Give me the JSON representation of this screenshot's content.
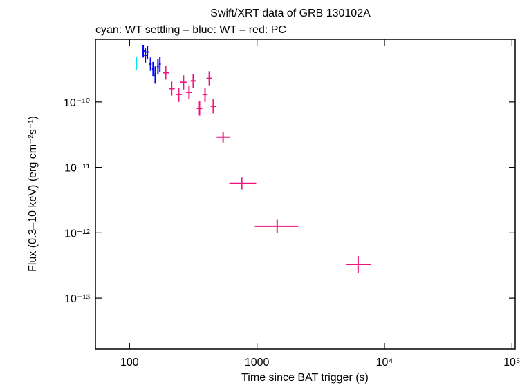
{
  "chart_data": {
    "type": "errorbar-scatter",
    "title": "Swift/XRT data of GRB 130102A",
    "subtitle": "cyan: WT settling – blue: WT – red: PC",
    "xlabel": "Time since BAT trigger (s)",
    "ylabel": "Flux (0.3–10 keV) (erg cm⁻²s⁻¹)",
    "xscale": "log",
    "yscale": "log",
    "xlim": [
      54,
      106000
    ],
    "ylim": [
      1.66e-14,
      9.1e-10
    ],
    "xticks": [
      100,
      1000,
      {
        "value": 10000,
        "label": "10⁴"
      },
      {
        "value": 100000,
        "label": "10⁵"
      }
    ],
    "yticks": [
      {
        "value": 1e-13,
        "label": "10⁻¹³"
      },
      {
        "value": 1e-12,
        "label": "10⁻¹²"
      },
      {
        "value": 1e-11,
        "label": "10⁻¹¹"
      },
      {
        "value": 1e-10,
        "label": "10⁻¹⁰"
      }
    ],
    "series": [
      {
        "color": "#00e5ee",
        "x": [
          113
        ],
        "xerr": [
          [
            2,
            2
          ]
        ],
        "values": [
          3.9e-10
        ],
        "yerr": [
          [
            8e-11,
            1e-10
          ]
        ]
      },
      {
        "color": "#0000ff",
        "x": [
          128,
          133,
          138,
          146,
          153,
          159,
          167,
          173
        ],
        "xerr": [
          [
            3,
            3
          ],
          [
            3,
            3
          ],
          [
            3,
            3
          ],
          [
            3,
            3
          ],
          [
            3,
            3
          ],
          [
            3,
            3
          ],
          [
            3,
            3
          ],
          [
            3,
            3
          ]
        ],
        "values": [
          6e-10,
          5.2e-10,
          5.8e-10,
          3.8e-10,
          3.2e-10,
          2.6e-10,
          3.5e-10,
          3.8e-10
        ],
        "yerr": [
          [
            1.2e-10,
            1.5e-10
          ],
          [
            1.2e-10,
            1.4e-10
          ],
          [
            1.3e-10,
            1.5e-10
          ],
          [
            8e-11,
            1e-10
          ],
          [
            7e-11,
            9e-11
          ],
          [
            7e-11,
            9e-11
          ],
          [
            8e-11,
            1e-10
          ],
          [
            9e-11,
            1.1e-10
          ]
        ]
      },
      {
        "color": "#f0147f",
        "x": [
          192,
          214,
          243,
          265,
          293,
          316,
          354,
          391,
          422,
          454,
          542,
          759,
          1439,
          6210
        ],
        "xerr": [
          [
            10,
            11
          ],
          [
            11,
            12
          ],
          [
            13,
            14
          ],
          [
            14,
            15
          ],
          [
            15,
            16
          ],
          [
            15,
            16
          ],
          [
            17,
            18
          ],
          [
            18,
            19
          ],
          [
            20,
            21
          ],
          [
            21,
            22
          ],
          [
            60,
            76
          ],
          [
            153,
            226
          ],
          [
            478,
            671
          ],
          [
            1190,
            1580
          ]
        ],
        "values": [
          2.8e-10,
          1.6e-10,
          1.3e-10,
          2e-10,
          1.4e-10,
          2.1e-10,
          8e-11,
          1.3e-10,
          2.3e-10,
          8.6e-11,
          2.9e-11,
          5.7e-12,
          1.26e-12,
          3.3e-13
        ],
        "yerr": [
          [
            6e-11,
            8e-11
          ],
          [
            3.5e-11,
            4.5e-11
          ],
          [
            3e-11,
            3.5e-11
          ],
          [
            4.5e-11,
            5.5e-11
          ],
          [
            3e-11,
            4e-11
          ],
          [
            4.5e-11,
            6e-11
          ],
          [
            1.8e-11,
            2.2e-11
          ],
          [
            3e-11,
            3.5e-11
          ],
          [
            5e-11,
            6.5e-11
          ],
          [
            1.9e-11,
            2.4e-11
          ],
          [
            5e-12,
            6e-12
          ],
          [
            1.1e-12,
            1.3e-12
          ],
          [
            2.6e-13,
            3.2e-13
          ],
          [
            9e-14,
            1.1e-13
          ]
        ]
      }
    ]
  }
}
